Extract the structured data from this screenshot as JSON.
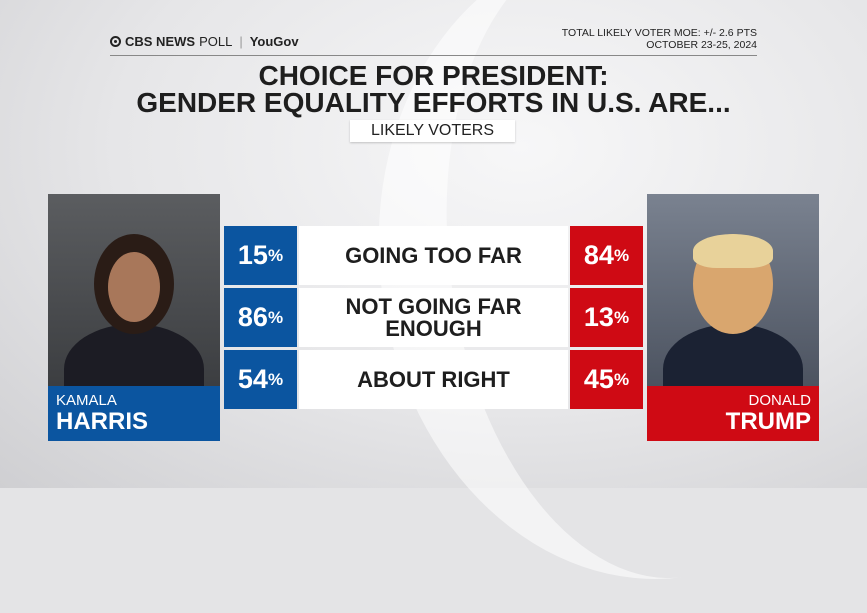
{
  "header": {
    "logo_cbs": "CBS NEWS",
    "logo_poll": "POLL",
    "logo_partner": "YouGov",
    "moe": "TOTAL LIKELY VOTER MOE: +/- 2.6 PTS",
    "dates": "OCTOBER 23-25, 2024"
  },
  "chart_data": {
    "type": "table",
    "title": "CHOICE FOR PRESIDENT:",
    "subtitle": "GENDER EQUALITY EFFORTS IN U.S. ARE...",
    "population": "LIKELY VOTERS",
    "categories": [
      "GOING TOO FAR",
      "NOT GOING FAR ENOUGH",
      "ABOUT RIGHT"
    ],
    "series": [
      {
        "name": "KAMALA HARRIS",
        "first": "KAMALA",
        "last": "HARRIS",
        "color": "#0b55a0",
        "values": [
          15,
          86,
          54
        ]
      },
      {
        "name": "DONALD TRUMP",
        "first": "DONALD",
        "last": "TRUMP",
        "color": "#cf0a14",
        "values": [
          84,
          13,
          45
        ]
      }
    ],
    "unit": "%"
  }
}
